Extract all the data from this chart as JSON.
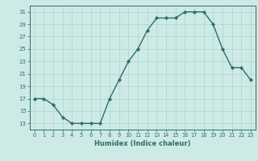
{
  "x": [
    0,
    1,
    2,
    3,
    4,
    5,
    6,
    7,
    8,
    9,
    10,
    11,
    12,
    13,
    14,
    15,
    16,
    17,
    18,
    19,
    20,
    21,
    22,
    23
  ],
  "y": [
    17,
    17,
    16,
    14,
    13,
    13,
    13,
    13,
    17,
    20,
    23,
    25,
    28,
    30,
    30,
    30,
    31,
    31,
    31,
    29,
    25,
    22,
    22,
    20
  ],
  "xlabel": "Humidex (Indice chaleur)",
  "ylim": [
    12,
    32
  ],
  "xlim": [
    -0.5,
    23.5
  ],
  "yticks": [
    13,
    15,
    17,
    19,
    21,
    23,
    25,
    27,
    29,
    31
  ],
  "xticks": [
    0,
    1,
    2,
    3,
    4,
    5,
    6,
    7,
    8,
    9,
    10,
    11,
    12,
    13,
    14,
    15,
    16,
    17,
    18,
    19,
    20,
    21,
    22,
    23
  ],
  "line_color": "#2e6e65",
  "marker_color": "#2e6e65",
  "bg_color": "#cdeae6",
  "grid_color": "#aed4ce",
  "tick_label_color": "#2e6e65",
  "xlabel_color": "#2e6e65",
  "marker": "D",
  "marker_size": 2.2,
  "linewidth": 1.0
}
